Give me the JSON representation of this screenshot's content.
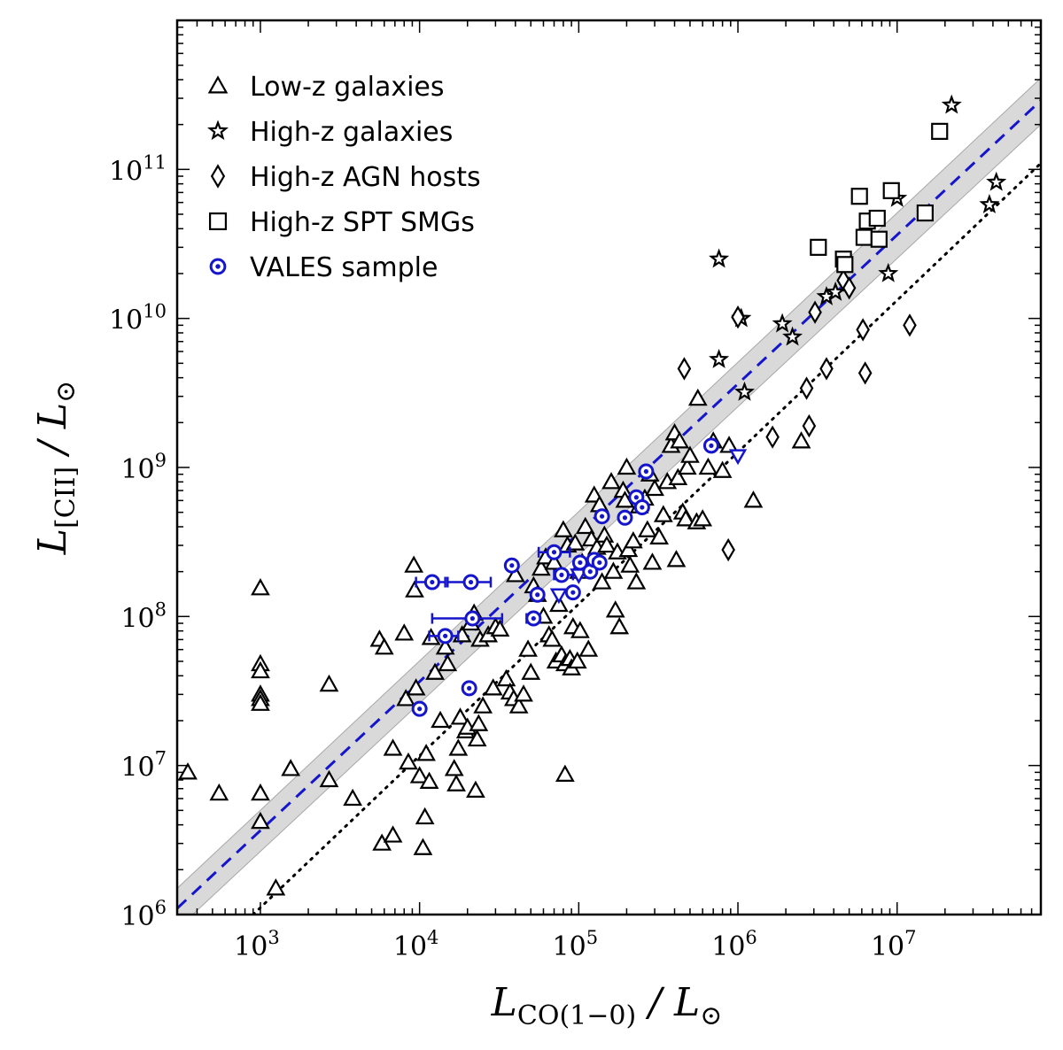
{
  "chart_data": {
    "type": "scatter",
    "xlabel": "L_CO(1−0) / L_⊙",
    "ylabel": "L_[CII] / L_⊙",
    "xscale": "log",
    "yscale": "log",
    "xlim": [
      300,
      80000000
    ],
    "ylim": [
      1000000,
      1000000000000
    ],
    "grid": false,
    "legend_position": "top-left",
    "x_ticks": [
      {
        "base": "10",
        "exp": "3",
        "value": 1000
      },
      {
        "base": "10",
        "exp": "4",
        "value": 10000
      },
      {
        "base": "10",
        "exp": "5",
        "value": 100000
      },
      {
        "base": "10",
        "exp": "6",
        "value": 1000000
      },
      {
        "base": "10",
        "exp": "7",
        "value": 10000000
      }
    ],
    "y_ticks": [
      {
        "base": "10",
        "exp": "6",
        "value": 1000000
      },
      {
        "base": "10",
        "exp": "7",
        "value": 10000000
      },
      {
        "base": "10",
        "exp": "8",
        "value": 100000000
      },
      {
        "base": "10",
        "exp": "9",
        "value": 1000000000
      },
      {
        "base": "10",
        "exp": "10",
        "value": 10000000000
      },
      {
        "base": "10",
        "exp": "11",
        "value": 100000000000
      }
    ],
    "lines": [
      {
        "style": "dashed",
        "color": "#1515cc",
        "x": [
          300,
          80000000
        ],
        "y": [
          1100000,
          290000000000
        ]
      },
      {
        "style": "dotted",
        "color": "#000000",
        "x": [
          900,
          80000000
        ],
        "y": [
          1000000,
          110000000000
        ]
      }
    ],
    "band": {
      "color": "#d9d9d9",
      "x": [
        300,
        80000000
      ],
      "y_low": [
        800000,
        200000000000
      ],
      "y_high": [
        1500000,
        410000000000
      ]
    },
    "series": [
      {
        "name": "Low-z galaxies",
        "marker": "triangle",
        "color": "#000000",
        "points": [
          [
            350,
            9000000
          ],
          [
            550,
            6500000
          ],
          [
            1000,
            155000000
          ],
          [
            1000,
            48000000
          ],
          [
            1000,
            43000000
          ],
          [
            1000,
            30000000
          ],
          [
            1000,
            28000000
          ],
          [
            1000,
            26000000
          ],
          [
            1000,
            6500000
          ],
          [
            1000,
            4200000
          ],
          [
            1250,
            1500000
          ],
          [
            1550,
            9500000
          ],
          [
            2700,
            35000000
          ],
          [
            2700,
            8000000
          ],
          [
            3800,
            6000000
          ],
          [
            5600,
            70000000
          ],
          [
            5800,
            3000000
          ],
          [
            6000,
            62000000
          ],
          [
            6800,
            3400000
          ],
          [
            6800,
            13000000
          ],
          [
            8000,
            77000000
          ],
          [
            8200,
            28000000
          ],
          [
            8500,
            10500000
          ],
          [
            9200,
            220000000
          ],
          [
            9300,
            150000000
          ],
          [
            9500,
            33000000
          ],
          [
            10000,
            8500000
          ],
          [
            10500,
            2800000
          ],
          [
            10800,
            4500000
          ],
          [
            11000,
            12000000
          ],
          [
            11500,
            7800000
          ],
          [
            11800,
            72000000
          ],
          [
            12500,
            42000000
          ],
          [
            13500,
            20000000
          ],
          [
            14500,
            62000000
          ],
          [
            15000,
            48000000
          ],
          [
            16500,
            9500000
          ],
          [
            17000,
            7500000
          ],
          [
            17500,
            13000000
          ],
          [
            18000,
            21000000
          ],
          [
            18500,
            75000000
          ],
          [
            19500,
            17000000
          ],
          [
            20000,
            18000000
          ],
          [
            21000,
            90000000
          ],
          [
            22000,
            105000000
          ],
          [
            22500,
            6800000
          ],
          [
            23000,
            15000000
          ],
          [
            23500,
            19000000
          ],
          [
            24000,
            70000000
          ],
          [
            25000,
            25000000
          ],
          [
            27000,
            75000000
          ],
          [
            29000,
            33000000
          ],
          [
            30000,
            85000000
          ],
          [
            32000,
            82000000
          ],
          [
            35000,
            38000000
          ],
          [
            37000,
            31000000
          ],
          [
            39000,
            28000000
          ],
          [
            40000,
            190000000
          ],
          [
            42000,
            25000000
          ],
          [
            45000,
            30000000
          ],
          [
            48000,
            60000000
          ],
          [
            50000,
            42000000
          ],
          [
            52000,
            160000000
          ],
          [
            55000,
            140000000
          ],
          [
            58000,
            210000000
          ],
          [
            60000,
            100000000
          ],
          [
            62000,
            250000000
          ],
          [
            65000,
            75000000
          ],
          [
            68000,
            70000000
          ],
          [
            70000,
            230000000
          ],
          [
            72000,
            50000000
          ],
          [
            75000,
            120000000
          ],
          [
            78000,
            55000000
          ],
          [
            80000,
            380000000
          ],
          [
            82000,
            48000000
          ],
          [
            82000,
            8700000
          ],
          [
            85000,
            300000000
          ],
          [
            88000,
            52000000
          ],
          [
            90000,
            45000000
          ],
          [
            92000,
            85000000
          ],
          [
            95000,
            310000000
          ],
          [
            98000,
            50000000
          ],
          [
            100000,
            200000000
          ],
          [
            102000,
            80000000
          ],
          [
            105000,
            230000000
          ],
          [
            110000,
            400000000
          ],
          [
            115000,
            60000000
          ],
          [
            120000,
            330000000
          ],
          [
            125000,
            650000000
          ],
          [
            130000,
            290000000
          ],
          [
            135000,
            560000000
          ],
          [
            140000,
            170000000
          ],
          [
            145000,
            350000000
          ],
          [
            150000,
            300000000
          ],
          [
            160000,
            800000000
          ],
          [
            165000,
            200000000
          ],
          [
            170000,
            110000000
          ],
          [
            175000,
            270000000
          ],
          [
            180000,
            85000000
          ],
          [
            190000,
            700000000
          ],
          [
            195000,
            600000000
          ],
          [
            200000,
            1000000000
          ],
          [
            205000,
            280000000
          ],
          [
            210000,
            220000000
          ],
          [
            220000,
            320000000
          ],
          [
            230000,
            170000000
          ],
          [
            240000,
            550000000
          ],
          [
            260000,
            620000000
          ],
          [
            270000,
            380000000
          ],
          [
            280000,
            900000000
          ],
          [
            290000,
            230000000
          ],
          [
            300000,
            720000000
          ],
          [
            320000,
            340000000
          ],
          [
            340000,
            480000000
          ],
          [
            360000,
            800000000
          ],
          [
            380000,
            1400000000
          ],
          [
            400000,
            1700000000
          ],
          [
            410000,
            240000000
          ],
          [
            420000,
            850000000
          ],
          [
            430000,
            1500000000
          ],
          [
            450000,
            500000000
          ],
          [
            470000,
            450000000
          ],
          [
            480000,
            1000000000
          ],
          [
            500000,
            1200000000
          ],
          [
            550000,
            430000000
          ],
          [
            560000,
            2900000000
          ],
          [
            600000,
            450000000
          ],
          [
            650000,
            1000000000
          ],
          [
            700000,
            1500000000
          ],
          [
            800000,
            950000000
          ],
          [
            880000,
            1400000000
          ],
          [
            1250000,
            600000000
          ],
          [
            2500000,
            1500000000
          ]
        ]
      },
      {
        "name": "High-z galaxies",
        "marker": "star",
        "color": "#000000",
        "points": [
          [
            760000,
            25000000000
          ],
          [
            760000,
            5300000000
          ],
          [
            1050000,
            10000000000
          ],
          [
            1100000,
            3200000000
          ],
          [
            1900000,
            9200000000
          ],
          [
            2200000,
            7500000000
          ],
          [
            3600000,
            14000000000
          ],
          [
            4100000,
            15000000000
          ],
          [
            8800000,
            20000000000
          ],
          [
            10000000,
            64000000000
          ],
          [
            22000000,
            270000000000
          ],
          [
            38000000,
            58000000000
          ],
          [
            42000000,
            82000000000
          ]
        ]
      },
      {
        "name": "High-z AGN hosts",
        "marker": "diamond",
        "color": "#000000",
        "points": [
          [
            460000,
            4600000000
          ],
          [
            870000,
            280000000
          ],
          [
            1000000,
            10200000000
          ],
          [
            1650000,
            1600000000
          ],
          [
            2700000,
            3400000000
          ],
          [
            2800000,
            1900000000
          ],
          [
            3050000,
            11000000000
          ],
          [
            3600000,
            4600000000
          ],
          [
            4600000,
            18000000000
          ],
          [
            5000000,
            16000000000
          ],
          [
            6100000,
            8400000000
          ],
          [
            6300000,
            4300000000
          ],
          [
            12000000,
            9000000000
          ]
        ]
      },
      {
        "name": "High-z SPT SMGs",
        "marker": "square",
        "color": "#000000",
        "points": [
          [
            3200000,
            30000000000
          ],
          [
            4600000,
            25000000000
          ],
          [
            4700000,
            23000000000
          ],
          [
            5800000,
            66000000000
          ],
          [
            6200000,
            35000000000
          ],
          [
            6500000,
            45000000000
          ],
          [
            7500000,
            47000000000
          ],
          [
            7700000,
            34000000000
          ],
          [
            9200000,
            72000000000
          ],
          [
            15000000,
            51000000000
          ],
          [
            18500000,
            180000000000
          ]
        ]
      },
      {
        "name": "VALES sample",
        "marker": "circle-dot",
        "color": "#1515cc",
        "points": [
          [
            10000,
            24000000
          ],
          [
            12000,
            170000000
          ],
          [
            14500,
            74000000
          ],
          [
            20500,
            33000000
          ],
          [
            21000,
            170000000
          ],
          [
            21500,
            97000000
          ],
          [
            38000,
            220000000
          ],
          [
            52000,
            97000000
          ],
          [
            55000,
            140000000
          ],
          [
            70000,
            270000000
          ],
          [
            78000,
            190000000
          ],
          [
            92000,
            145000000
          ],
          [
            102000,
            230000000
          ],
          [
            118000,
            200000000
          ],
          [
            125000,
            240000000
          ],
          [
            135000,
            230000000
          ],
          [
            140000,
            470000000
          ],
          [
            195000,
            460000000
          ],
          [
            230000,
            630000000
          ],
          [
            250000,
            540000000
          ],
          [
            265000,
            940000000
          ],
          [
            680000,
            1400000000
          ]
        ],
        "upper_limits": [
          [
            100000,
            190000000
          ],
          [
            75000,
            140000000
          ],
          [
            1000000,
            1200000000
          ]
        ],
        "error_bars": [
          {
            "x": [
              9500,
              10500
            ],
            "y": 24000000
          },
          {
            "x": [
              9500,
              14500
            ],
            "y": 170000000
          },
          {
            "x": [
              11500,
              17500
            ],
            "y": 74000000
          },
          {
            "x": [
              15000,
              28000
            ],
            "y": 170000000
          },
          {
            "x": [
              12000,
              33000
            ],
            "y": 97000000
          },
          {
            "x": [
              47000,
              57000
            ],
            "y": 97000000
          },
          {
            "x": [
              56000,
              88000
            ],
            "y": 270000000
          },
          {
            "x": [
              70000,
              92000
            ],
            "y": 190000000
          },
          {
            "x": [
              95000,
              140000
            ],
            "y": 230000000
          }
        ]
      }
    ]
  }
}
